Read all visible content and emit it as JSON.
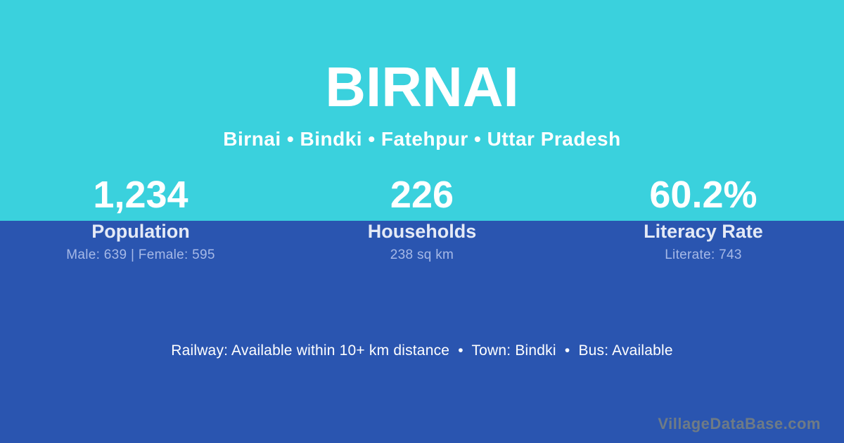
{
  "colors": {
    "top-bg": "#3AD1DD",
    "bottom-bg": "#2A55B0",
    "title-text": "#FFFFFF",
    "label-text": "#E4EAF6",
    "detail-text": "#A6B9E7",
    "watermark-text": "#6F7B85"
  },
  "header": {
    "title": "BIRNAI",
    "breadcrumb": "Birnai • Bindki • Fatehpur • Uttar Pradesh"
  },
  "stats": [
    {
      "value": "1,234",
      "label": "Population",
      "detail": "Male: 639 | Female: 595"
    },
    {
      "value": "226",
      "label": "Households",
      "detail": "238 sq km"
    },
    {
      "value": "60.2%",
      "label": "Literacy Rate",
      "detail": "Literate: 743"
    }
  ],
  "footer": {
    "info": "Railway: Available within 10+ km distance  •  Town: Bindki  •  Bus: Available",
    "watermark": "VillageDataBase.com"
  }
}
